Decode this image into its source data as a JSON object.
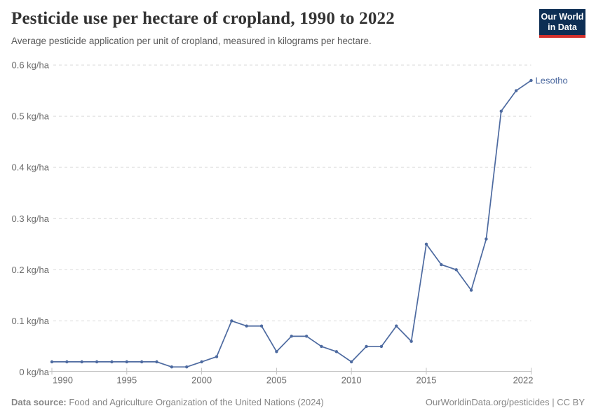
{
  "header": {
    "title": "Pesticide use per hectare of cropland, 1990 to 2022",
    "subtitle": "Average pesticide application per unit of cropland, measured in kilograms per hectare.",
    "logo": {
      "line1": "Our World",
      "line2": "in Data"
    }
  },
  "chart_data": {
    "type": "line",
    "title": "Pesticide use per hectare of cropland, 1990 to 2022",
    "x": [
      1990,
      1991,
      1992,
      1993,
      1994,
      1995,
      1996,
      1997,
      1998,
      1999,
      2000,
      2001,
      2002,
      2003,
      2004,
      2005,
      2006,
      2007,
      2008,
      2009,
      2010,
      2011,
      2012,
      2013,
      2014,
      2015,
      2016,
      2017,
      2018,
      2019,
      2020,
      2021,
      2022
    ],
    "series": [
      {
        "name": "Lesotho",
        "values": [
          0.02,
          0.02,
          0.02,
          0.02,
          0.02,
          0.02,
          0.02,
          0.02,
          0.01,
          0.01,
          0.02,
          0.03,
          0.1,
          0.09,
          0.09,
          0.04,
          0.07,
          0.07,
          0.05,
          0.04,
          0.02,
          0.05,
          0.05,
          0.09,
          0.06,
          0.25,
          0.21,
          0.2,
          0.16,
          0.26,
          0.51,
          0.55,
          0.57
        ]
      }
    ],
    "xlabel": "",
    "ylabel": "kg/ha",
    "xlim": [
      1990,
      2022
    ],
    "ylim": [
      0,
      0.6
    ],
    "xticks": [
      1990,
      1995,
      2000,
      2005,
      2010,
      2015,
      2022
    ],
    "yticks": [
      0,
      0.1,
      0.2,
      0.3,
      0.4,
      0.5,
      0.6
    ],
    "ytick_labels": [
      "0 kg/ha",
      "0.1 kg/ha",
      "0.2 kg/ha",
      "0.3 kg/ha",
      "0.4 kg/ha",
      "0.5 kg/ha",
      "0.6 kg/ha"
    ],
    "grid": "horizontal-dashed",
    "legend_position": "end-of-line",
    "end_label": "Lesotho"
  },
  "footer": {
    "source_label": "Data source:",
    "source_text": " Food and Agriculture Organization of the United Nations (2024)",
    "attribution": "OurWorldinData.org/pesticides | CC BY"
  },
  "colors": {
    "line": "#4d6aa0",
    "grid": "#d9d9d9",
    "axis": "#c2c2c2",
    "tick_label": "#6d6d6d",
    "title_text": "#333333",
    "subtitle_text": "#5a5a5a",
    "footer_text": "#868686",
    "logo_bg": "#0d2e54",
    "logo_accent": "#d2302c"
  }
}
